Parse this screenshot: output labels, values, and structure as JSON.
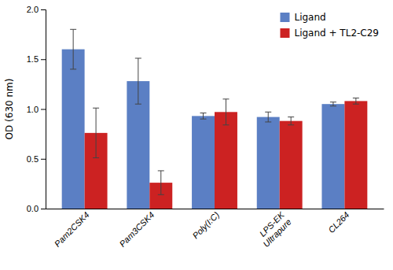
{
  "chart_data": {
    "type": "bar",
    "categories": [
      "Pam2CSK4",
      "Pam3CSK4",
      "Poly(I:C)",
      "LPS-EK\nUltrapure",
      "CL264"
    ],
    "series": [
      {
        "name": "Ligand",
        "color": "#5b7fc4",
        "values": [
          1.6,
          1.28,
          0.93,
          0.92,
          1.05
        ],
        "errors": [
          0.2,
          0.23,
          0.03,
          0.05,
          0.02
        ]
      },
      {
        "name": "Ligand + TL2-C29",
        "color": "#cc2222",
        "values": [
          0.76,
          0.26,
          0.97,
          0.88,
          1.08
        ],
        "errors": [
          0.25,
          0.12,
          0.13,
          0.04,
          0.03
        ]
      }
    ],
    "y_label": "OD (630 nm)",
    "ylim": [
      0.0,
      2.0
    ],
    "yticks": [
      {
        "value": 0.0,
        "label": "0.0"
      },
      {
        "value": 0.5,
        "label": "0.5"
      },
      {
        "value": 1.0,
        "label": "1.0"
      },
      {
        "value": 1.5,
        "label": "1.5"
      },
      {
        "value": 2.0,
        "label": "2.0"
      }
    ],
    "legend": "upper right",
    "grid": false
  }
}
